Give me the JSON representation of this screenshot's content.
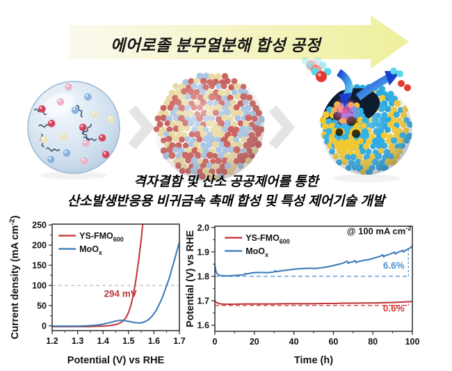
{
  "banner": {
    "title": "에어로졸 분무열분해 합성 공정",
    "arrow_color_left": "#fbf9ee",
    "arrow_color_right": "#eef09c"
  },
  "caption": {
    "line1": "격자결함 및 산소 공공제어를 통한",
    "line2": "산소발생반응용 비귀금속 촉매 합성 및 특성 제어기술 개발"
  },
  "process": {
    "chevron_color": "#e4e4e4",
    "droplet": {
      "body": "#cfdfee",
      "rim": "#9fbad4",
      "dot_colors": [
        "#d6455e",
        "#ece4bc",
        "#8ab4e0",
        "#eeb3c8"
      ],
      "chain_color": "#2c3d58"
    },
    "dense_particle": {
      "bead_colors": [
        "#c9605c",
        "#a8c4e4",
        "#e8d9a0"
      ],
      "bead_weights": [
        0.4,
        0.32,
        0.28
      ]
    },
    "yolk_shell": {
      "shell_bead_colors": [
        "#29a8e0",
        "#f2c832"
      ],
      "shell_bead_weights": [
        0.7,
        0.3
      ],
      "interior_color": "#0e1c30",
      "yolk_bead_colors": [
        "#f2c832",
        "#35b4e4"
      ],
      "yolk_bead_weights": [
        0.58,
        0.42
      ],
      "defect_color": "#1c1405",
      "glow_color": "#ff5fd2",
      "arrow_color_dark": "#1a3fd0",
      "arrow_color_light": "#5fd0f5",
      "oxygen_color": "#e23a2e",
      "hydrogen_color": "#5cd6ea"
    }
  },
  "chart_data": [
    {
      "id": "lsv",
      "type": "line",
      "xlabel": [
        {
          "t": "Potential (V) vs RHE"
        }
      ],
      "ylabel": [
        {
          "t": "Current density (mA cm"
        },
        {
          "t": "-2",
          "sup": true
        },
        {
          "t": ")"
        }
      ],
      "xlim": [
        1.2,
        1.7
      ],
      "ylim": [
        -12,
        252
      ],
      "grid": false,
      "legend_pos": [
        0.05,
        0.03
      ],
      "xticks": [
        {
          "v": 1.2,
          "l": "1.2"
        },
        {
          "v": 1.3,
          "l": "1.3"
        },
        {
          "v": 1.4,
          "l": "1.4"
        },
        {
          "v": 1.5,
          "l": "1.5"
        },
        {
          "v": 1.6,
          "l": "1.6"
        },
        {
          "v": 1.7,
          "l": "1.7"
        }
      ],
      "yticks": [
        {
          "v": 0,
          "l": "0"
        },
        {
          "v": 50,
          "l": "50"
        },
        {
          "v": 100,
          "l": "100"
        },
        {
          "v": 150,
          "l": "150"
        },
        {
          "v": 200,
          "l": "200"
        },
        {
          "v": 250,
          "l": "250"
        }
      ],
      "xminor": [
        1.25,
        1.35,
        1.45,
        1.55,
        1.65
      ],
      "yminor": [
        25,
        75,
        125,
        175,
        225
      ],
      "series": [
        {
          "name": [
            {
              "t": "YS-FMO"
            },
            {
              "t": "600",
              "sub": true
            }
          ],
          "color": "#c0393b",
          "x": [
            1.2,
            1.25,
            1.3,
            1.35,
            1.38,
            1.4,
            1.42,
            1.44,
            1.45,
            1.46,
            1.47,
            1.48,
            1.49,
            1.5,
            1.51,
            1.52,
            1.53,
            1.54,
            1.55,
            1.556
          ],
          "y": [
            -2,
            -2,
            -2,
            -2,
            -1,
            -1,
            0,
            2,
            3,
            5,
            8,
            13,
            20,
            33,
            52,
            80,
            118,
            162,
            215,
            252
          ]
        },
        {
          "name": [
            {
              "t": "MoO"
            },
            {
              "t": "x",
              "sub": true
            }
          ],
          "color": "#3f7cb9",
          "x": [
            1.2,
            1.26,
            1.3,
            1.34,
            1.36,
            1.38,
            1.4,
            1.42,
            1.44,
            1.45,
            1.46,
            1.47,
            1.48,
            1.49,
            1.5,
            1.51,
            1.52,
            1.53,
            1.54,
            1.55,
            1.56,
            1.57,
            1.58,
            1.59,
            1.6,
            1.61,
            1.62,
            1.63,
            1.64,
            1.65,
            1.66,
            1.67,
            1.68,
            1.69,
            1.7
          ],
          "y": [
            -1,
            -1,
            -1,
            0,
            1,
            2,
            4,
            7,
            10,
            12,
            13,
            13.5,
            13,
            12,
            11,
            9.5,
            8.5,
            7.5,
            7,
            7.5,
            9,
            12,
            16,
            22,
            30,
            40,
            52,
            66,
            82,
            100,
            118,
            140,
            162,
            185,
            207
          ]
        }
      ],
      "refs": [
        {
          "type": "hline",
          "y": 100,
          "x1": 1.2,
          "x2": 1.7,
          "color": "#b8b8b8",
          "dash": "5,4",
          "w": 1.3
        }
      ],
      "annotations": [
        {
          "segs": [
            {
              "t": "294 mV"
            }
          ],
          "x": 1.468,
          "y": 72,
          "color": "#c0393b",
          "size": 13.5,
          "anchor": "middle"
        }
      ]
    },
    {
      "id": "stability",
      "type": "line",
      "xlabel": [
        {
          "t": "Time (h)"
        }
      ],
      "ylabel": [
        {
          "t": "Potential (V) vs RHE"
        }
      ],
      "xlim": [
        0,
        100
      ],
      "ylim": [
        1.575,
        2.005
      ],
      "grid": false,
      "legend_pos": [
        0.05,
        0.03
      ],
      "xticks": [
        {
          "v": 0,
          "l": "0"
        },
        {
          "v": 20,
          "l": "20"
        },
        {
          "v": 40,
          "l": "40"
        },
        {
          "v": 60,
          "l": "60"
        },
        {
          "v": 80,
          "l": "80"
        },
        {
          "v": 100,
          "l": "100"
        }
      ],
      "yticks": [
        {
          "v": 1.6,
          "l": "1.6"
        },
        {
          "v": 1.7,
          "l": "1.7"
        },
        {
          "v": 1.8,
          "l": "1.8"
        },
        {
          "v": 1.9,
          "l": "1.9"
        },
        {
          "v": 2.0,
          "l": "2.0"
        }
      ],
      "xminor": [
        10,
        30,
        50,
        70,
        90
      ],
      "yminor": [
        1.65,
        1.75,
        1.85,
        1.95
      ],
      "series": [
        {
          "name": [
            {
              "t": "YS-FMO"
            },
            {
              "t": "600",
              "sub": true
            }
          ],
          "color": "#c0393b",
          "x": [
            0,
            0.5,
            1,
            2,
            3,
            5,
            10,
            15,
            20,
            25,
            30,
            35,
            40,
            45,
            50,
            55,
            60,
            65,
            70,
            75,
            80,
            85,
            90,
            95,
            98,
            100
          ],
          "y": [
            1.7,
            1.695,
            1.692,
            1.689,
            1.687,
            1.686,
            1.686,
            1.687,
            1.687,
            1.687,
            1.687,
            1.688,
            1.688,
            1.688,
            1.688,
            1.689,
            1.689,
            1.69,
            1.69,
            1.691,
            1.691,
            1.692,
            1.693,
            1.695,
            1.696,
            1.697
          ]
        },
        {
          "name": [
            {
              "t": "MoO"
            },
            {
              "t": "x",
              "sub": true
            }
          ],
          "color": "#3f7cb9",
          "x": [
            0,
            0.5,
            1,
            2,
            3,
            5,
            7,
            9,
            11,
            13,
            15,
            15.5,
            16,
            17,
            18,
            20,
            22,
            24,
            26,
            28,
            30,
            30.5,
            31,
            33,
            35,
            37,
            39,
            41,
            43,
            45,
            47,
            49,
            51,
            53,
            55,
            57,
            59,
            61,
            63,
            65,
            66,
            67,
            67.5,
            68,
            70,
            71,
            71.5,
            72,
            74,
            76,
            78,
            80,
            82,
            84,
            85,
            85.5,
            86,
            88,
            90,
            91,
            91.5,
            92,
            94,
            95,
            95.5,
            96,
            97,
            98,
            99,
            100
          ],
          "y": [
            1.845,
            1.822,
            1.812,
            1.805,
            1.803,
            1.802,
            1.802,
            1.803,
            1.804,
            1.805,
            1.807,
            1.812,
            1.809,
            1.811,
            1.813,
            1.815,
            1.816,
            1.816,
            1.815,
            1.816,
            1.818,
            1.823,
            1.819,
            1.822,
            1.824,
            1.826,
            1.828,
            1.83,
            1.831,
            1.832,
            1.833,
            1.833,
            1.832,
            1.834,
            1.836,
            1.839,
            1.842,
            1.846,
            1.85,
            1.854,
            1.858,
            1.862,
            1.853,
            1.856,
            1.86,
            1.864,
            1.856,
            1.859,
            1.863,
            1.866,
            1.869,
            1.873,
            1.878,
            1.883,
            1.888,
            1.879,
            1.884,
            1.889,
            1.895,
            1.899,
            1.891,
            1.896,
            1.902,
            1.906,
            1.899,
            1.904,
            1.908,
            1.913,
            1.917,
            1.925
          ]
        }
      ],
      "refs": [
        {
          "type": "hline",
          "y": 1.8,
          "x1": 0,
          "x2": 98,
          "color": "#5b9bd5",
          "dash": "6,4",
          "w": 1.6
        },
        {
          "type": "vline",
          "x": 98,
          "y1": 1.8,
          "y2": 1.915,
          "color": "#5b9bd5",
          "dash": "3,3",
          "w": 1.4
        },
        {
          "type": "hline",
          "y": 1.681,
          "x1": 0,
          "x2": 98,
          "color": "#d9595b",
          "dash": "6,4",
          "w": 1.6
        },
        {
          "type": "vline",
          "x": 98,
          "y1": 1.681,
          "y2": 1.697,
          "color": "#d9595b",
          "dash": "3,3",
          "w": 1.4
        }
      ],
      "annotations": [
        {
          "segs": [
            {
              "t": "@ 100 mA cm"
            },
            {
              "t": "-2",
              "sup": true
            }
          ],
          "x": 99.5,
          "y": 1.972,
          "color": "#141414",
          "size": 13,
          "anchor": "end"
        },
        {
          "segs": [
            {
              "t": "6.6%"
            }
          ],
          "x": 96,
          "y": 1.832,
          "color": "#4f93d4",
          "size": 13.5,
          "anchor": "end"
        },
        {
          "segs": [
            {
              "t": "0.6%"
            }
          ],
          "x": 96,
          "y": 1.656,
          "color": "#d43c3c",
          "size": 13.5,
          "anchor": "end"
        }
      ]
    }
  ]
}
